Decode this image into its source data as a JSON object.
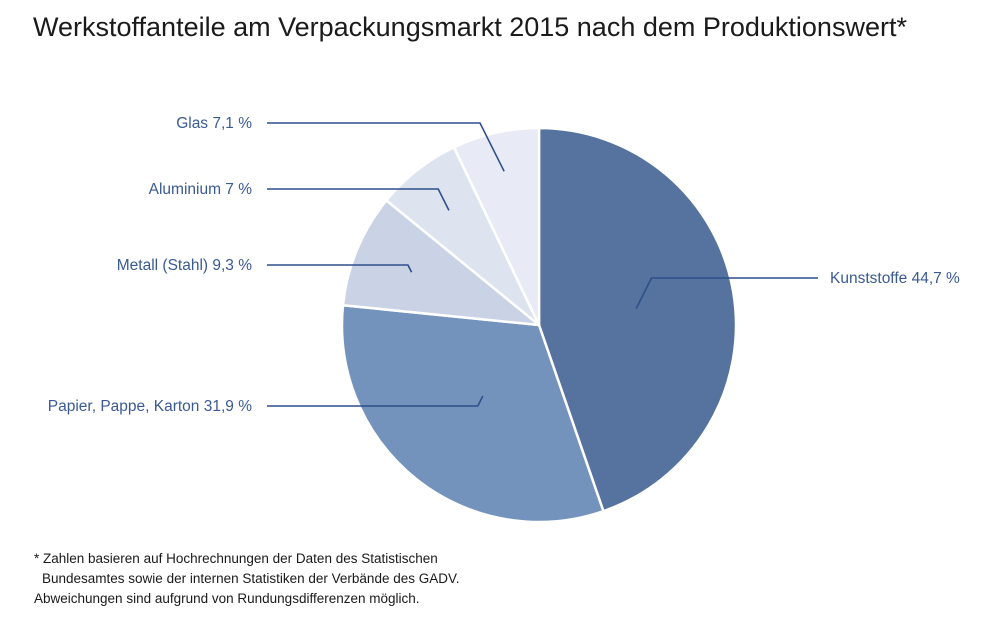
{
  "title": "Werkstoffanteile am Verpackungsmarkt 2015 nach dem Produktionswert*",
  "chart_data": {
    "type": "pie",
    "title": "Werkstoffanteile am Verpackungsmarkt 2015 nach dem Produktionswert*",
    "unit": "%",
    "slices": [
      {
        "name": "Kunststoffe",
        "value": 44.7,
        "label": "Kunststoffe 44,7 %",
        "color": "#56739f"
      },
      {
        "name": "Papier, Pappe, Karton",
        "value": 31.9,
        "label": "Papier, Pappe, Karton 31,9 %",
        "color": "#7393bd"
      },
      {
        "name": "Metall (Stahl)",
        "value": 9.3,
        "label": "Metall (Stahl) 9,3 %",
        "color": "#c9d3e5"
      },
      {
        "name": "Aluminium",
        "value": 7.0,
        "label": "Aluminium 7 %",
        "color": "#dde3ef"
      },
      {
        "name": "Glas",
        "value": 7.1,
        "label": "Glas 7,1 %",
        "color": "#e8ebf5"
      }
    ]
  },
  "footnote": {
    "line1": "* Zahlen basieren auf Hochrechnungen der Daten des Statistischen",
    "line2": "Bundesamtes sowie der internen Statistiken der Verbände des GADV.",
    "line3": "Abweichungen sind aufgrund von Rundungsdifferenzen möglich."
  },
  "colors": {
    "leader": "#2e4f8a",
    "label_text": "#3a5a93",
    "slice_border": "#ffffff"
  }
}
